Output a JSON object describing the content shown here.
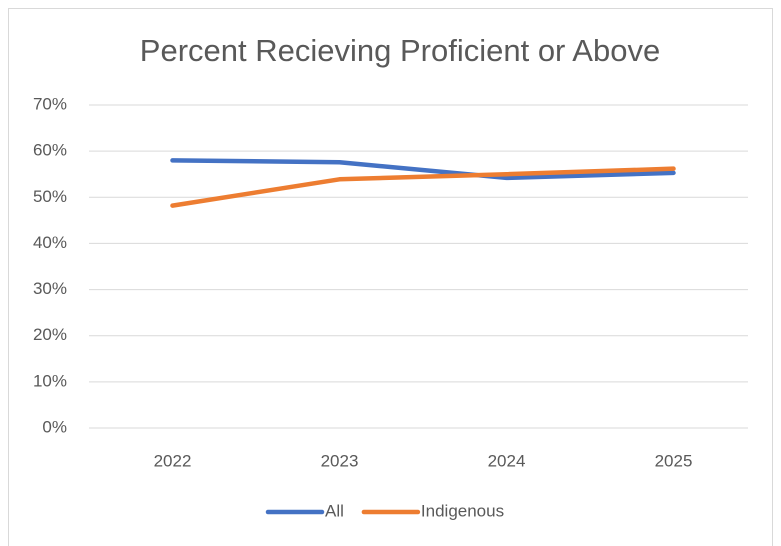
{
  "chart_data": {
    "type": "line",
    "title": "Percent Recieving Proficient or Above",
    "categories": [
      "2022",
      "2023",
      "2024",
      "2025"
    ],
    "series": [
      {
        "name": "All",
        "color": "#4472c4",
        "values": [
          58,
          57.6,
          54.2,
          55.3
        ]
      },
      {
        "name": "Indigenous",
        "color": "#ed7d31",
        "values": [
          48.2,
          53.9,
          55,
          56.2
        ]
      }
    ],
    "ylim": [
      0,
      70
    ],
    "yticks": [
      {
        "value": 0,
        "label": "0%"
      },
      {
        "value": 10,
        "label": "10%"
      },
      {
        "value": 20,
        "label": "20%"
      },
      {
        "value": 30,
        "label": "30%"
      },
      {
        "value": 40,
        "label": "40%"
      },
      {
        "value": 50,
        "label": "50%"
      },
      {
        "value": 60,
        "label": "60%"
      },
      {
        "value": 70,
        "label": "70%"
      }
    ],
    "grid": true,
    "legend": "bottom"
  }
}
